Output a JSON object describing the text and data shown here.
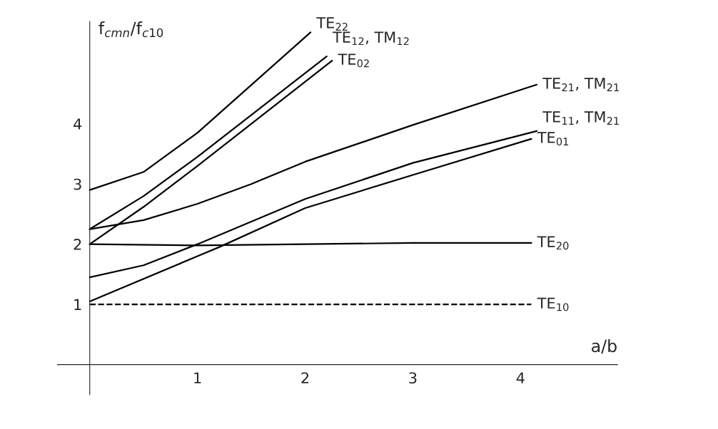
{
  "chart_data": {
    "type": "line",
    "xlabel": "a/b",
    "ylabel": "f$_{cmn}$/f$_{c10}$",
    "xlim": [
      -0.3,
      4.9
    ],
    "ylim": [
      -0.5,
      5.7
    ],
    "xticks": [
      1,
      2,
      3,
      4
    ],
    "yticks": [
      1,
      2,
      3,
      4
    ],
    "grid": false,
    "legend": false,
    "marker": "none",
    "series": [
      {
        "name": "TE$_{10}$",
        "color": "#000000",
        "line_style": "dashed",
        "x": [
          0,
          4.1
        ],
        "values": [
          1.0,
          1.0
        ]
      },
      {
        "name": "TE$_{20}$",
        "color": "#000000",
        "x": [
          0,
          1,
          2,
          3,
          4.1
        ],
        "values": [
          2.0,
          1.98,
          2.0,
          2.02,
          2.02
        ]
      },
      {
        "name": "TE$_{01}$",
        "color": "#000000",
        "x": [
          0,
          1,
          1.2,
          2,
          3,
          4.1
        ],
        "values": [
          1.05,
          1.8,
          1.95,
          2.6,
          3.15,
          3.75
        ]
      },
      {
        "name": "TE$_{11}$, TM$_{21}$",
        "color": "#000000",
        "x": [
          0,
          0.5,
          1,
          2,
          3,
          4.15
        ],
        "values": [
          1.45,
          1.65,
          2.0,
          2.75,
          3.35,
          3.88
        ]
      },
      {
        "name": "TE$_{21}$, TM$_{21}$",
        "color": "#000000",
        "x": [
          0,
          0.5,
          1,
          1.5,
          2,
          3,
          4.15
        ],
        "values": [
          2.25,
          2.4,
          2.67,
          3.0,
          3.37,
          3.98,
          4.65
        ]
      },
      {
        "name": "TE$_{02}$",
        "color": "#000000",
        "x": [
          0,
          0.5,
          1,
          2.25
        ],
        "values": [
          2.0,
          2.62,
          3.3,
          5.05
        ]
      },
      {
        "name": "TE$_{12}$, TM$_{12}$",
        "color": "#000000",
        "x": [
          0,
          0.5,
          1,
          2.2
        ],
        "values": [
          2.25,
          2.8,
          3.45,
          5.12
        ]
      },
      {
        "name": "TE$_{22}$",
        "color": "#000000",
        "x": [
          0,
          0.5,
          1,
          2.05
        ],
        "values": [
          2.9,
          3.2,
          3.85,
          5.52
        ]
      }
    ]
  }
}
